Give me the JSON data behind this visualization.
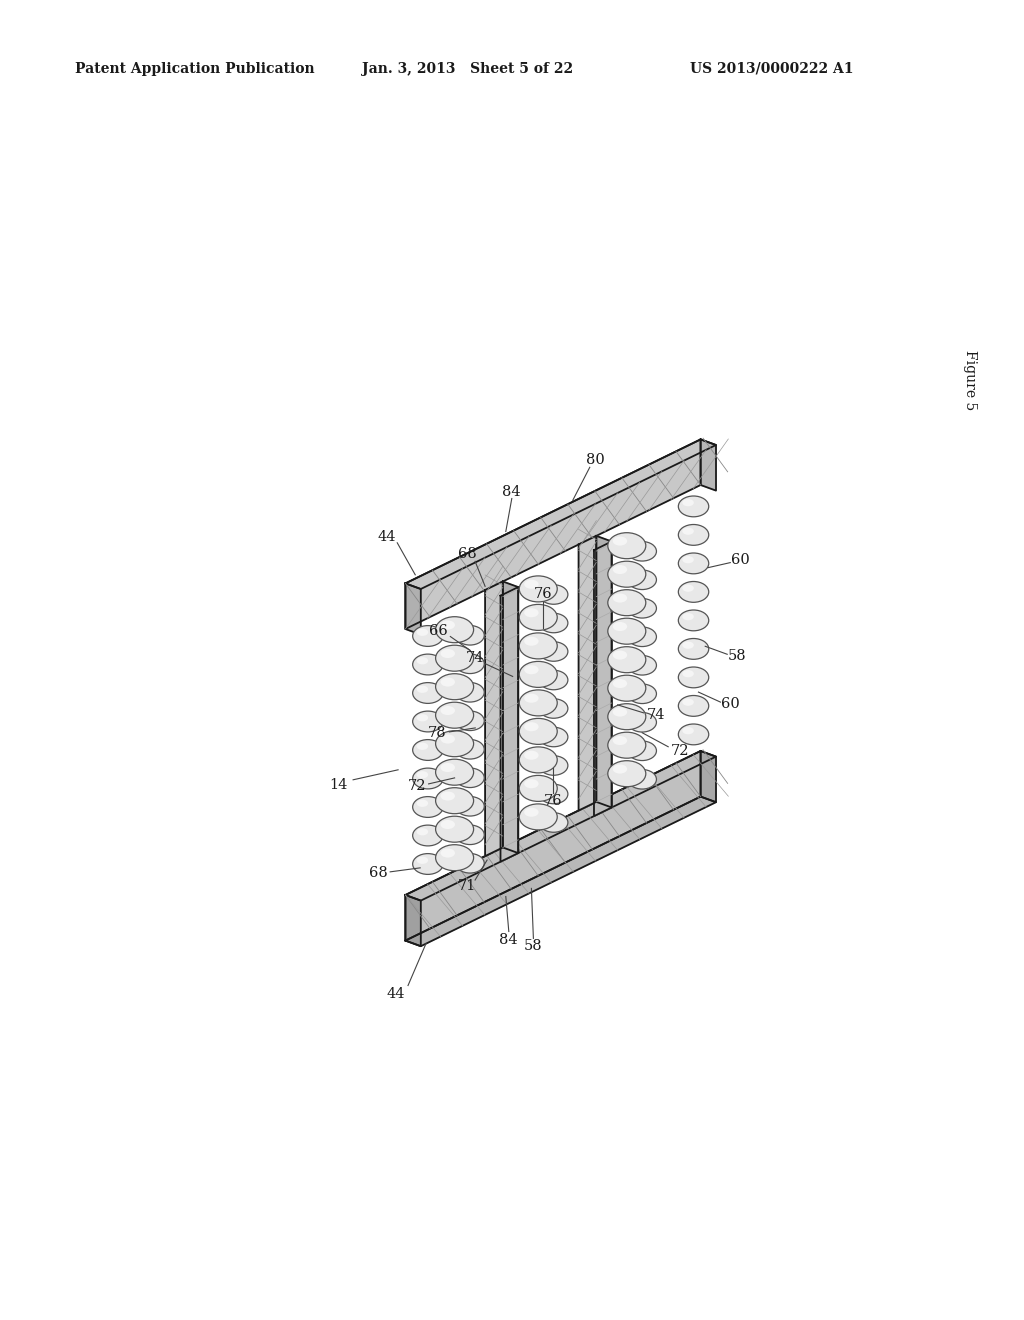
{
  "header_left": "Patent Application Publication",
  "header_mid": "Jan. 3, 2013   Sheet 5 of 22",
  "header_right": "US 2013/0000222 A1",
  "figure_label": "Figure 5",
  "bg_color": "#ffffff"
}
